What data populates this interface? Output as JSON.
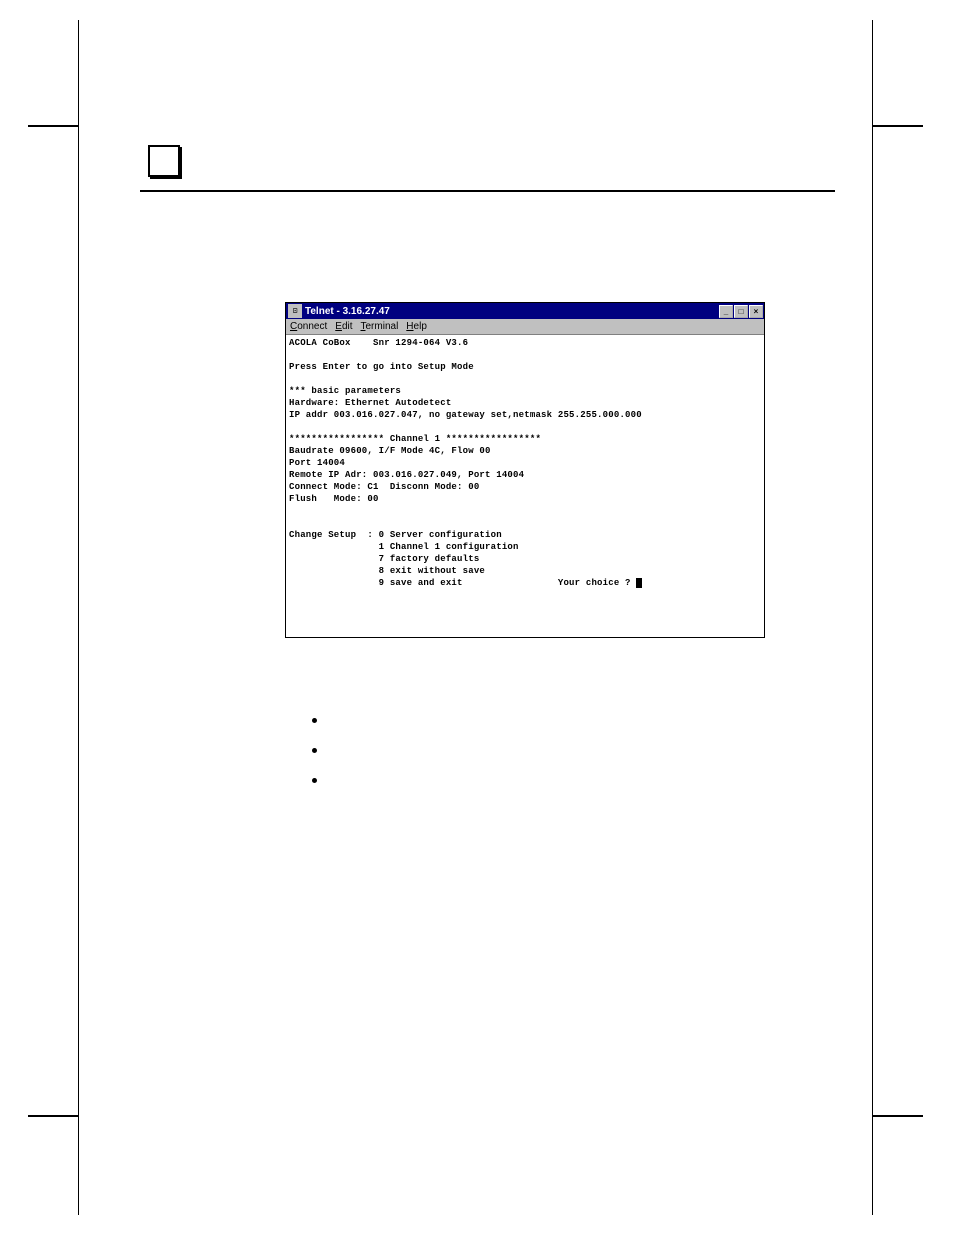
{
  "telnet": {
    "title": "Telnet - 3.16.27.47",
    "menus": {
      "connect": "Connect",
      "edit": "Edit",
      "terminal": "Terminal",
      "help": "Help"
    },
    "window_controls": {
      "minimize": "_",
      "maximize": "□",
      "close": "×"
    },
    "lines": {
      "l1": "ACOLA CoBox    Snr 1294-064 V3.6",
      "l2": "",
      "l3": "Press Enter to go into Setup Mode",
      "l4": "",
      "l5": "*** basic parameters",
      "l6": "Hardware: Ethernet Autodetect",
      "l7": "IP addr 003.016.027.047, no gateway set,netmask 255.255.000.000",
      "l8": "",
      "l9": "***************** Channel 1 *****************",
      "l10": "Baudrate 09600, I/F Mode 4C, Flow 00",
      "l11": "Port 14004",
      "l12": "Remote IP Adr: 003.016.027.049, Port 14004",
      "l13": "Connect Mode: C1  Disconn Mode: 00",
      "l14": "Flush   Mode: 00",
      "l15": "",
      "l16": "",
      "l17": "Change Setup  : 0 Server configuration",
      "l18": "                1 Channel 1 configuration",
      "l19": "                7 factory defaults",
      "l20": "                8 exit without save",
      "l21a": "                9 save and exit                 Your choice ? "
    },
    "colors": {
      "titlebar_bg": "#000080",
      "titlebar_fg": "#ffffff",
      "menubar_bg": "#c0c0c0",
      "terminal_bg": "#ffffff",
      "terminal_fg": "#000000"
    }
  }
}
